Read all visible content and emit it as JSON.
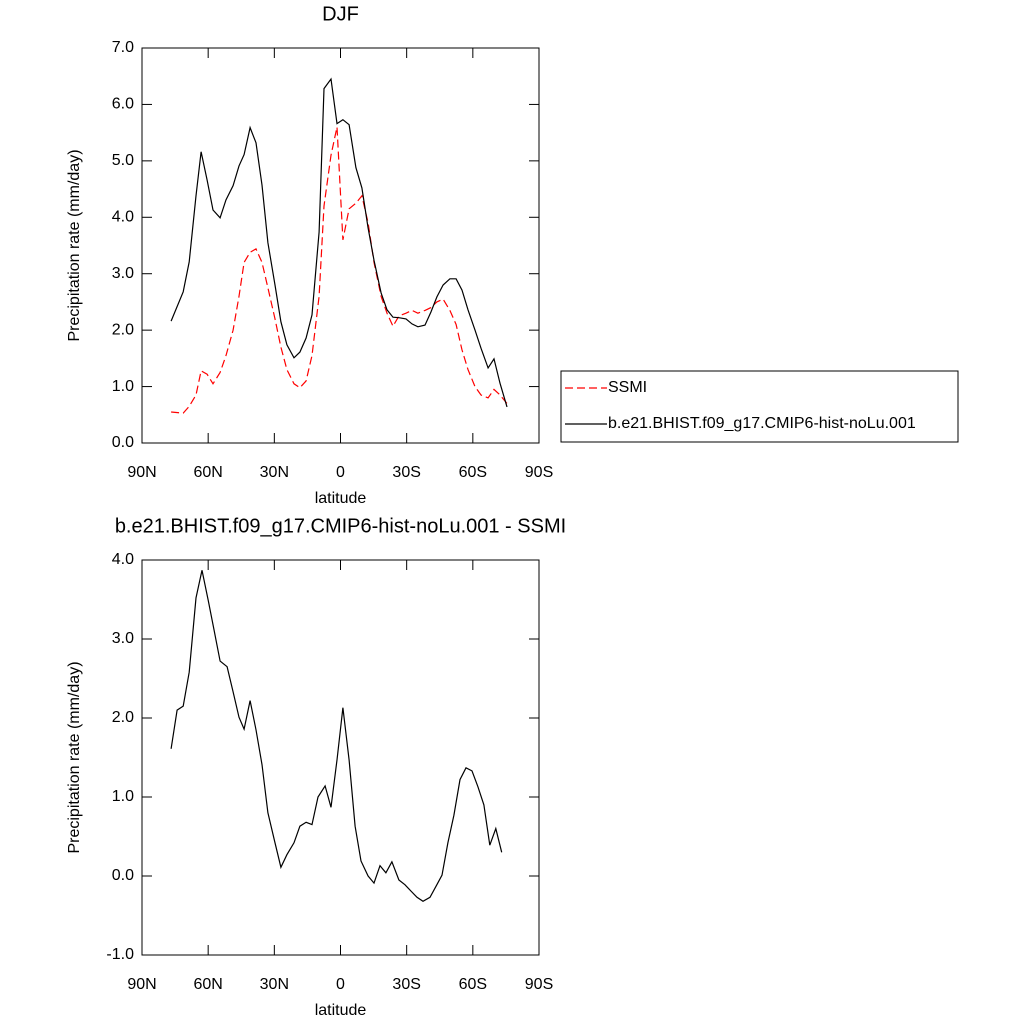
{
  "chart_data": [
    {
      "type": "line",
      "title": "DJF",
      "xlabel": "latitude",
      "ylabel": "Precipitation rate (mm/day)",
      "xlim": [
        90,
        -90
      ],
      "xticks": [
        {
          "value": 90,
          "label": "90N"
        },
        {
          "value": 60,
          "label": "60N"
        },
        {
          "value": 30,
          "label": "30N"
        },
        0,
        {
          "value": -30,
          "label": "30S"
        },
        {
          "value": -60,
          "label": "60S"
        },
        {
          "value": -90,
          "label": "90S"
        }
      ],
      "ylim": [
        0,
        7
      ],
      "yticks": [
        {
          "value": 0,
          "label": "0.0"
        },
        {
          "value": 1,
          "label": "1.0"
        },
        {
          "value": 2,
          "label": "2.0"
        },
        {
          "value": 3,
          "label": "3.0"
        },
        {
          "value": 4,
          "label": "4.0"
        },
        {
          "value": 5,
          "label": "5.0"
        },
        {
          "value": 6,
          "label": "6.0"
        },
        {
          "value": 7,
          "label": "7.0"
        }
      ],
      "legend": "right",
      "x": [
        76.8,
        71.3,
        68.6,
        65.5,
        63.2,
        60.5,
        57.8,
        54.6,
        51.9,
        48.7,
        46.0,
        43.7,
        41.0,
        38.3,
        35.6,
        32.9,
        29.7,
        27.0,
        24.3,
        21.1,
        18.4,
        15.6,
        12.9,
        9.7,
        7.5,
        4.3,
        1.6,
        -1.1,
        -3.9,
        -7.0,
        -9.7,
        -12.5,
        -15.2,
        -18.4,
        -21.1,
        -23.8,
        -26.5,
        -29.7,
        -32.4,
        -35.1,
        -38.3,
        -41.0,
        -43.7,
        -46.5,
        -49.6,
        -52.4,
        -55.1,
        -57.8,
        -61.0,
        -63.7,
        -66.9,
        -69.6,
        -72.3,
        -75.5
      ],
      "series": [
        {
          "name": "SSMI",
          "color": "#ff0000",
          "dash": "dashed",
          "values": [
            0.55,
            0.53,
            0.65,
            0.85,
            1.28,
            1.22,
            1.05,
            1.25,
            1.55,
            2.0,
            2.6,
            3.2,
            3.38,
            3.44,
            3.2,
            2.75,
            2.2,
            1.7,
            1.3,
            1.05,
            0.98,
            1.1,
            1.55,
            2.6,
            4.2,
            5.1,
            5.6,
            3.6,
            4.15,
            4.25,
            4.38,
            3.9,
            3.2,
            2.6,
            2.3,
            2.07,
            2.25,
            2.3,
            2.35,
            2.3,
            2.35,
            2.4,
            2.5,
            2.55,
            2.35,
            2.1,
            1.65,
            1.3,
            1.0,
            0.85,
            0.8,
            0.95,
            0.85,
            0.7
          ]
        },
        {
          "name": "b.e21.BHIST.f09_g17.CMIP6-hist-noLu.001",
          "color": "#000000",
          "dash": "solid",
          "values": [
            2.16,
            2.68,
            3.21,
            4.38,
            5.16,
            4.66,
            4.13,
            3.99,
            4.31,
            4.56,
            4.91,
            5.11,
            5.59,
            5.32,
            4.57,
            3.55,
            2.8,
            2.15,
            1.74,
            1.51,
            1.61,
            1.86,
            2.27,
            3.74,
            6.28,
            6.45,
            5.66,
            5.73,
            5.64,
            4.88,
            4.52,
            3.81,
            3.24,
            2.66,
            2.36,
            2.23,
            2.22,
            2.2,
            2.11,
            2.06,
            2.09,
            2.32,
            2.59,
            2.8,
            2.91,
            2.91,
            2.71,
            2.36,
            2.0,
            1.68,
            1.33,
            1.49,
            1.06,
            0.64
          ]
        }
      ]
    },
    {
      "type": "line",
      "title": "b.e21.BHIST.f09_g17.CMIP6-hist-noLu.001 - SSMI",
      "xlabel": "latitude",
      "ylabel": "Precipitation rate (mm/day)",
      "xlim": [
        90,
        -90
      ],
      "xticks": [
        {
          "value": 90,
          "label": "90N"
        },
        {
          "value": 60,
          "label": "60N"
        },
        {
          "value": 30,
          "label": "30N"
        },
        0,
        {
          "value": -30,
          "label": "30S"
        },
        {
          "value": -60,
          "label": "60S"
        },
        {
          "value": -90,
          "label": "90S"
        }
      ],
      "ylim": [
        -1,
        4
      ],
      "yticks": [
        {
          "value": -1,
          "label": "-1.0"
        },
        {
          "value": 0,
          "label": "0.0"
        },
        {
          "value": 1,
          "label": "1.0"
        },
        {
          "value": 2,
          "label": "2.0"
        },
        {
          "value": 3,
          "label": "3.0"
        },
        {
          "value": 4,
          "label": "4.0"
        }
      ],
      "x": [
        76.8,
        74.1,
        71.3,
        68.6,
        65.5,
        62.8,
        60.0,
        57.3,
        54.6,
        51.4,
        48.7,
        46.0,
        43.7,
        41.0,
        38.3,
        35.6,
        32.9,
        29.7,
        27.0,
        24.3,
        21.1,
        18.4,
        15.6,
        12.9,
        10.2,
        7.0,
        4.3,
        1.6,
        -1.1,
        -3.9,
        -6.6,
        -9.3,
        -12.5,
        -15.2,
        -17.9,
        -20.6,
        -23.3,
        -26.5,
        -29.2,
        -31.9,
        -34.7,
        -37.4,
        -40.6,
        -43.3,
        -46.0,
        -48.7,
        -51.4,
        -54.2,
        -56.9,
        -59.6,
        -62.3,
        -65.0,
        -67.7,
        -70.4,
        -73.1
      ],
      "series": [
        {
          "color": "#000000",
          "dash": "solid",
          "values": [
            1.61,
            2.1,
            2.15,
            2.58,
            3.52,
            3.87,
            3.49,
            3.11,
            2.72,
            2.65,
            2.33,
            2.01,
            1.86,
            2.22,
            1.85,
            1.41,
            0.8,
            0.42,
            0.11,
            0.27,
            0.42,
            0.63,
            0.68,
            0.65,
            1.0,
            1.14,
            0.87,
            1.47,
            2.13,
            1.47,
            0.63,
            0.19,
            0.0,
            -0.09,
            0.13,
            0.04,
            0.18,
            -0.05,
            -0.11,
            -0.19,
            -0.27,
            -0.32,
            -0.27,
            -0.13,
            0.01,
            0.42,
            0.77,
            1.22,
            1.37,
            1.33,
            1.13,
            0.9,
            0.39,
            0.6,
            0.3
          ]
        }
      ]
    }
  ]
}
